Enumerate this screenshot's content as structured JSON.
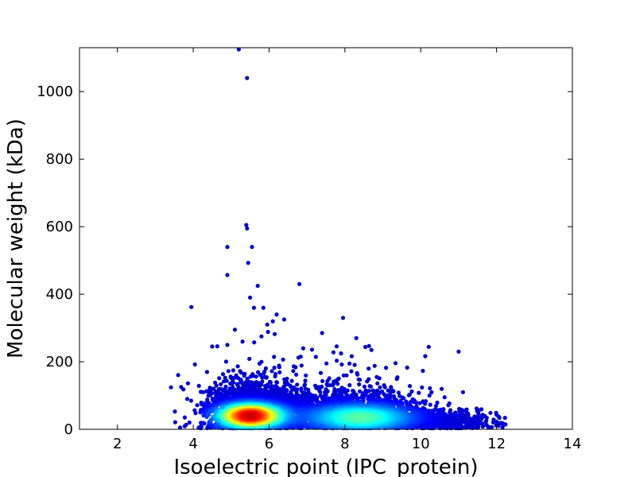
{
  "chart_data": {
    "type": "scatter",
    "title": "",
    "xlabel": "Isoelectric point (IPC_protein)",
    "ylabel": "Molecular weight (kDa)",
    "xlim": [
      1,
      14
    ],
    "ylim": [
      0,
      1130
    ],
    "xticks": [
      2,
      4,
      6,
      8,
      10,
      12,
      14
    ],
    "yticks": [
      0,
      200,
      400,
      600,
      800,
      1000
    ],
    "grid": false,
    "legend": "none",
    "colormap": "jet (point density: dark blue = low, dark red = high)",
    "density_peak": {
      "x": 5.5,
      "y": 40
    },
    "outliers": [
      {
        "x": 5.2,
        "y": 1125
      },
      {
        "x": 5.42,
        "y": 1040
      },
      {
        "x": 5.4,
        "y": 605
      },
      {
        "x": 5.42,
        "y": 595
      },
      {
        "x": 4.9,
        "y": 540
      },
      {
        "x": 5.55,
        "y": 540
      },
      {
        "x": 5.45,
        "y": 493
      },
      {
        "x": 4.9,
        "y": 457
      },
      {
        "x": 6.8,
        "y": 430
      },
      {
        "x": 5.7,
        "y": 425
      },
      {
        "x": 5.5,
        "y": 390
      },
      {
        "x": 3.95,
        "y": 362
      },
      {
        "x": 5.6,
        "y": 360
      },
      {
        "x": 5.85,
        "y": 360
      },
      {
        "x": 6.2,
        "y": 340
      },
      {
        "x": 7.95,
        "y": 330
      },
      {
        "x": 6.4,
        "y": 325
      },
      {
        "x": 6.1,
        "y": 320
      },
      {
        "x": 5.95,
        "y": 310
      },
      {
        "x": 5.1,
        "y": 295
      },
      {
        "x": 7.4,
        "y": 285
      },
      {
        "x": 6.15,
        "y": 282
      },
      {
        "x": 8.3,
        "y": 270
      },
      {
        "x": 4.9,
        "y": 250
      },
      {
        "x": 4.5,
        "y": 245
      },
      {
        "x": 8.7,
        "y": 235
      },
      {
        "x": 11.0,
        "y": 230
      },
      {
        "x": 7.7,
        "y": 228
      },
      {
        "x": 6.9,
        "y": 240
      },
      {
        "x": 5.3,
        "y": 260
      },
      {
        "x": 5.8,
        "y": 275
      }
    ]
  }
}
